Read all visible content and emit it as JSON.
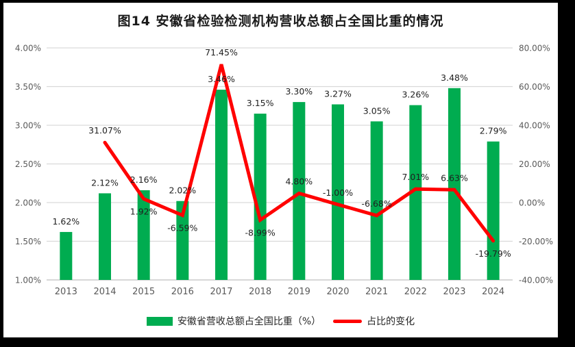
{
  "title": "图14 安徽省检验检测机构营收总额占全国比重的情况",
  "colors": {
    "bar": "#00AC50",
    "line": "#FF0000",
    "grid": "#D9D9D9",
    "axis_line": "#BFBFBF",
    "axis_text": "#595959",
    "label_text": "#1f1f1f",
    "frame": "#000000",
    "background": "#FFFFFF"
  },
  "chart_data": {
    "type": "bar",
    "subtype": "bar+line combo, dual axis",
    "title": "图14 安徽省检验检测机构营收总额占全国比重的情况",
    "categories": [
      "2013",
      "2014",
      "2015",
      "2016",
      "2017",
      "2018",
      "2019",
      "2020",
      "2021",
      "2022",
      "2023",
      "2024"
    ],
    "series": [
      {
        "name": "安徽省营收总额占全国比重（%）",
        "type": "bar",
        "axis": "left",
        "values": [
          1.62,
          2.12,
          2.16,
          2.02,
          3.46,
          3.15,
          3.3,
          3.27,
          3.05,
          3.26,
          3.48,
          2.79
        ],
        "labels": [
          "1.62%",
          "2.12%",
          "2.16%",
          "2.02%",
          "3.46%",
          "3.15%",
          "3.30%",
          "3.27%",
          "3.05%",
          "3.26%",
          "3.48%",
          "2.79%"
        ]
      },
      {
        "name": "占比的变化",
        "type": "line",
        "axis": "right",
        "values": [
          null,
          31.07,
          1.92,
          -6.59,
          71.45,
          -8.99,
          4.8,
          -1.0,
          -6.68,
          7.01,
          6.63,
          -19.79
        ],
        "labels": [
          null,
          "31.07%",
          "1.92%",
          "-6.59%",
          "71.45%",
          "-8.99%",
          "4.80%",
          "-1.00%",
          "-6.68%",
          "7.01%",
          "6.63%",
          "-19.79%"
        ],
        "label_positions": [
          null,
          "above",
          "below",
          "below",
          "above",
          "below",
          "above",
          "above",
          "above",
          "above",
          "above",
          "below"
        ]
      }
    ],
    "left_axis": {
      "min": 1.0,
      "max": 4.0,
      "ticks": [
        "4.00%",
        "3.50%",
        "3.00%",
        "2.50%",
        "2.00%",
        "1.50%",
        "1.00%"
      ]
    },
    "right_axis": {
      "min": -40,
      "max": 80,
      "ticks": [
        "80.00%",
        "60.00%",
        "40.00%",
        "20.00%",
        "0.00%",
        "-20.00%",
        "-40.00%"
      ]
    },
    "grid": true,
    "legend_position": "bottom"
  },
  "legend": {
    "items": [
      {
        "label": "安徽省营收总额占全国比重（%）",
        "swatch": "bar"
      },
      {
        "label": "占比的变化",
        "swatch": "line"
      }
    ]
  }
}
